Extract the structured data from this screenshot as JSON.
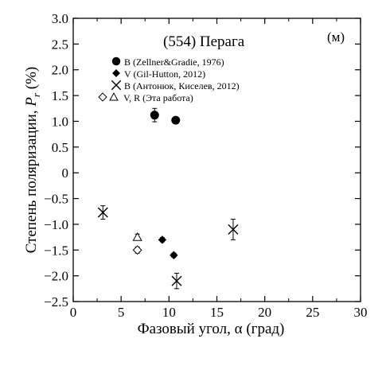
{
  "chart_data": {
    "type": "scatter",
    "title": "(554) Перага",
    "panel_label": "(м)",
    "xlabel": "Фазовый угол, α (град)",
    "ylabel": "Степень поляризации, Pr (%)",
    "ylabel_parts": {
      "main": "Степень поляризации, ",
      "var": "P",
      "sub": "r",
      "unit": " (%)"
    },
    "xlim": [
      0,
      30
    ],
    "ylim": [
      -2.5,
      3.0
    ],
    "x_ticks": [
      0,
      5,
      10,
      15,
      20,
      25,
      30
    ],
    "y_ticks": [
      3.0,
      2.5,
      2.0,
      1.5,
      1.0,
      0.5,
      0,
      -0.5,
      -1.0,
      -1.5,
      -2.0,
      -2.5
    ],
    "y_tick_labels": [
      "3.0",
      "2.5",
      "2.0",
      "1.5",
      "1.0",
      "0.5",
      "0",
      "−0.5",
      "−1.0",
      "−1.5",
      "−2.0",
      "−2.5"
    ],
    "legend_placement": "top-left",
    "series": [
      {
        "name": "B (Zellner&Gradie, 1976)",
        "marker": "circle-filled",
        "points": [
          {
            "x": 8.5,
            "y": 1.12,
            "err": 0.13
          },
          {
            "x": 10.7,
            "y": 1.02,
            "err": 0.05
          }
        ]
      },
      {
        "name": "V (Gil-Hutton, 2012)",
        "marker": "diamond-filled",
        "points": [
          {
            "x": 9.3,
            "y": -1.3,
            "err": 0.04
          },
          {
            "x": 10.5,
            "y": -1.6,
            "err": 0.04
          }
        ]
      },
      {
        "name": "B (Антонюк, Киселев, 2012)",
        "marker": "x",
        "points": [
          {
            "x": 3.1,
            "y": -0.77,
            "err": 0.13
          },
          {
            "x": 10.8,
            "y": -2.1,
            "err": 0.15
          },
          {
            "x": 16.7,
            "y": -1.1,
            "err": 0.2
          }
        ]
      },
      {
        "name": "V, R (Эта работа)",
        "marker": "diamond-open+triangle-open",
        "points": [
          {
            "x": 6.7,
            "y": -1.5,
            "err": 0.06,
            "marker": "diamond-open"
          },
          {
            "x": 6.7,
            "y": -1.25,
            "err": 0.06,
            "marker": "triangle-open"
          }
        ]
      }
    ]
  }
}
